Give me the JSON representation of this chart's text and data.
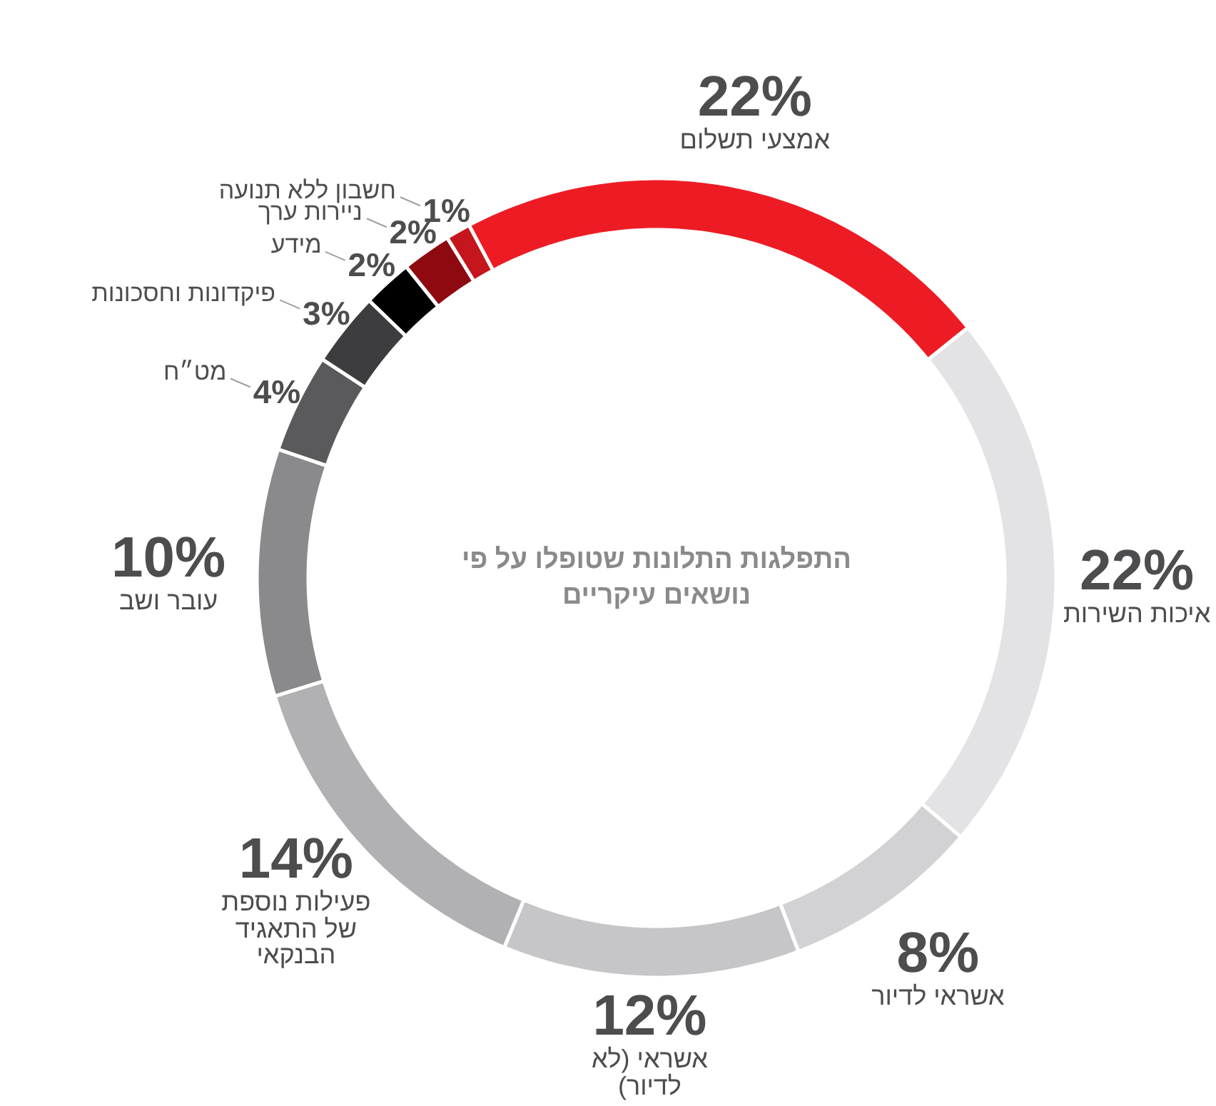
{
  "chart_data": {
    "type": "donut",
    "title": "התפלגות התלונות שטופלו על פי נושאים עיקריים",
    "categories": [
      "אמצעי תשלום",
      "איכות השירות",
      "אשראי לדיור",
      "אשראי (לא לדיור)",
      "פעילות נוספת של התאגיד הבנקאי",
      "עובר ושב",
      "מט״ח",
      "פיקדונות וחסכונות",
      "מידע",
      "ניירות ערך",
      "חשבון ללא תנועה"
    ],
    "values": [
      22,
      22,
      8,
      12,
      14,
      10,
      4,
      3,
      2,
      2,
      1
    ],
    "value_labels": [
      "22%",
      "22%",
      "8%",
      "12%",
      "14%",
      "10%",
      "4%",
      "3%",
      "2%",
      "2%",
      "1%"
    ],
    "colors": [
      "#ed1c24",
      "#e3e3e5",
      "#d2d2d4",
      "#c6c6c8",
      "#b1b1b3",
      "#8a8a8c",
      "#5a5a5c",
      "#3d3d3f",
      "#000000",
      "#8e0a10",
      "#c4161c"
    ]
  }
}
